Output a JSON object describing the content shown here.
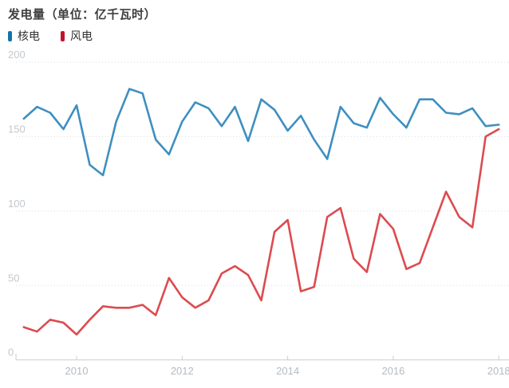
{
  "header": {
    "title": "发电量（单位：亿千瓦时）"
  },
  "legend": {
    "items": [
      {
        "label": "核电",
        "color": "#1573a8"
      },
      {
        "label": "风电",
        "color": "#c3122d"
      }
    ]
  },
  "chart_data": {
    "type": "line",
    "title": "发电量（单位：亿千瓦时）",
    "unit": "亿千瓦时",
    "x_interval": "quarter",
    "x_start": 2009.0,
    "x_end": 2018.0,
    "x": [
      2009.0,
      2009.25,
      2009.5,
      2009.75,
      2010.0,
      2010.25,
      2010.5,
      2010.75,
      2011.0,
      2011.25,
      2011.5,
      2011.75,
      2012.0,
      2012.25,
      2012.5,
      2012.75,
      2013.0,
      2013.25,
      2013.5,
      2013.75,
      2014.0,
      2014.25,
      2014.5,
      2014.75,
      2015.0,
      2015.25,
      2015.5,
      2015.75,
      2016.0,
      2016.25,
      2016.5,
      2016.75,
      2017.0,
      2017.25,
      2017.5,
      2017.75,
      2018.0
    ],
    "series": [
      {
        "name": "核电",
        "color": "#3e8fc0",
        "values": [
          162,
          170,
          166,
          155,
          171,
          131,
          124,
          160,
          182,
          179,
          148,
          138,
          160,
          173,
          169,
          157,
          170,
          147,
          175,
          168,
          154,
          164,
          148,
          135,
          170,
          159,
          156,
          176,
          165,
          156,
          175,
          175,
          166,
          165,
          169,
          157,
          158
        ]
      },
      {
        "name": "风电",
        "color": "#dc4b50",
        "values": [
          22,
          19,
          27,
          25,
          17,
          27,
          36,
          35,
          35,
          37,
          30,
          55,
          42,
          35,
          40,
          58,
          63,
          57,
          40,
          86,
          94,
          46,
          49,
          96,
          102,
          68,
          59,
          98,
          88,
          61,
          65,
          89,
          113,
          96,
          89,
          150,
          155
        ]
      }
    ],
    "yticks": [
      0,
      50,
      100,
      150,
      200
    ],
    "xticks": [
      2010,
      2012,
      2014,
      2016,
      2018
    ],
    "ylim": [
      0,
      200
    ],
    "grid": "dotted-horizontal",
    "legend_position": "top-left"
  }
}
